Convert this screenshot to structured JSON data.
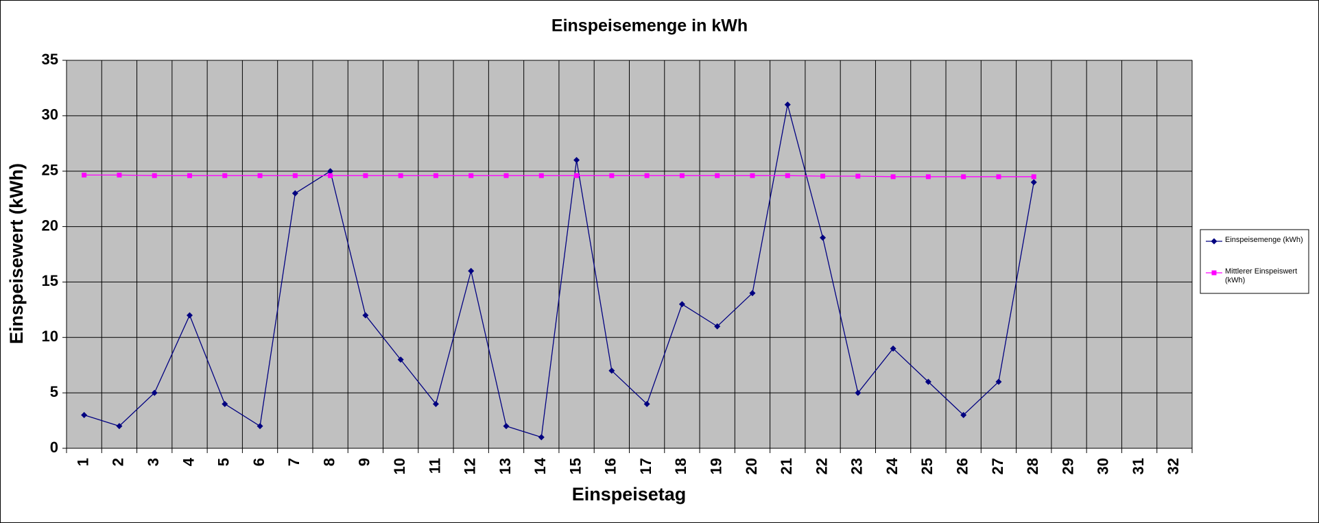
{
  "chart_data": {
    "type": "line",
    "title": "Einspeisemenge in kWh",
    "x_label": "Einspeisetag",
    "y_label": "Einspeisewert  (kWh)",
    "categories": [
      "1",
      "2",
      "3",
      "4",
      "5",
      "6",
      "7",
      "8",
      "9",
      "10",
      "11",
      "12",
      "13",
      "14",
      "15",
      "16",
      "17",
      "18",
      "19",
      "20",
      "21",
      "22",
      "23",
      "24",
      "25",
      "26",
      "27",
      "28",
      "29",
      "30",
      "31",
      "32"
    ],
    "series": [
      {
        "name": "Einspeisemenge (kWh)",
        "color": "#000080",
        "marker": "diamond",
        "values": [
          3,
          2,
          5,
          12,
          4,
          2,
          23,
          25,
          12,
          8,
          4,
          16,
          2,
          1,
          26,
          7,
          4,
          13,
          11,
          14,
          31,
          19,
          5,
          9,
          6,
          3,
          6,
          24,
          null,
          null,
          null,
          null
        ]
      },
      {
        "name": "Mittlerer Einspeiswert (kWh)",
        "color": "#ff00ff",
        "marker": "square",
        "values": [
          24.65,
          24.65,
          24.6,
          24.6,
          24.6,
          24.6,
          24.6,
          24.6,
          24.6,
          24.6,
          24.6,
          24.6,
          24.6,
          24.6,
          24.6,
          24.6,
          24.6,
          24.6,
          24.6,
          24.6,
          24.6,
          24.55,
          24.55,
          24.5,
          24.5,
          24.5,
          24.5,
          24.5,
          null,
          null,
          null,
          null
        ]
      }
    ],
    "ylim": [
      0,
      35
    ],
    "yticks": [
      0,
      5,
      10,
      15,
      20,
      25,
      30,
      35
    ],
    "grid": true,
    "legend": "right"
  }
}
